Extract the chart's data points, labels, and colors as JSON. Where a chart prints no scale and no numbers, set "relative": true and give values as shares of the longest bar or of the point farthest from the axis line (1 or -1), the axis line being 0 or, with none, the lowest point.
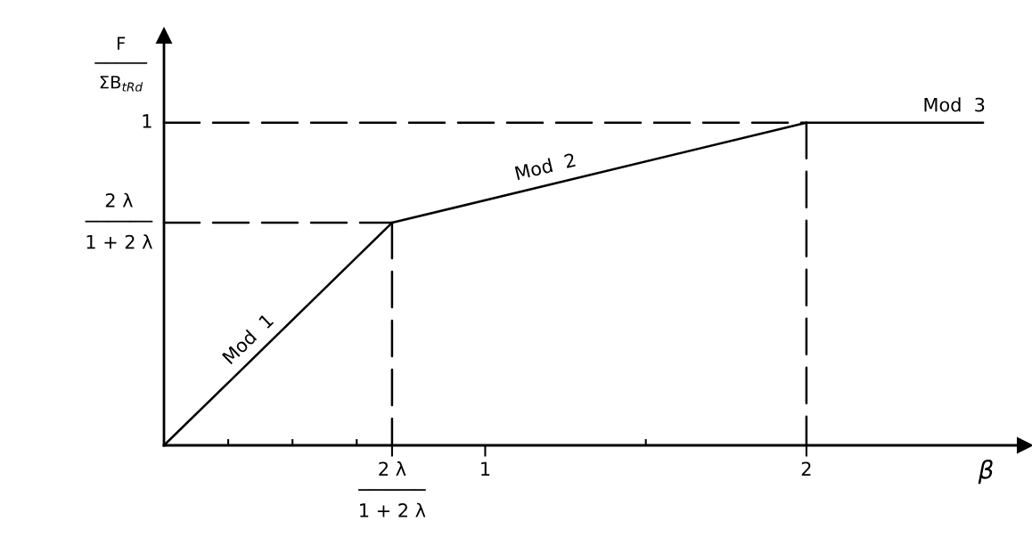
{
  "chart_data": {
    "type": "line",
    "relative": true,
    "xlabel": "β",
    "ylabel": "F\n─────\nΣB$_{tRd}$",
    "series": [
      {
        "x": [
          0,
          0.71,
          2,
          2.55
        ],
        "values": [
          0,
          0.69,
          1,
          1
        ],
        "color": "#000000",
        "line_style": "solid"
      },
      {
        "x": [
          0,
          0.71
        ],
        "values": [
          0.69,
          0.69
        ],
        "color": "#000000",
        "line_style": "dashed"
      },
      {
        "x": [
          0.71,
          0.71
        ],
        "values": [
          0.69,
          0
        ],
        "color": "#000000",
        "line_style": "dashed"
      },
      {
        "x": [
          0,
          2
        ],
        "values": [
          1,
          1
        ],
        "color": "#000000",
        "line_style": "dashed"
      },
      {
        "x": [
          2,
          2
        ],
        "values": [
          1,
          0
        ],
        "color": "#000000",
        "line_style": "dashed"
      }
    ],
    "xlim": [
      0,
      2.68
    ],
    "xticks": [
      {
        "value": 0.2,
        "label": null
      },
      {
        "value": 0.4,
        "label": null
      },
      {
        "value": 0.6,
        "label": null
      },
      {
        "value": 0.71,
        "label": "2 λ\n──────\n1 + 2 λ"
      },
      1,
      {
        "value": 1.5,
        "label": null
      },
      2
    ],
    "annotations": [
      {
        "text": "1",
        "x": 0,
        "y": 1
      },
      {
        "text": "2 λ\n──────\n1 + 2 λ",
        "x": 0,
        "y": 0.69
      },
      {
        "text": "Mod  1",
        "x": 0.3,
        "y": 0.29
      },
      {
        "text": "Mod  2",
        "x": 1.2,
        "y": 0.81
      },
      {
        "text": "Mod  3",
        "x": 2.46,
        "y": 1
      }
    ],
    "grid": false,
    "legend": false,
    "marker": "none"
  }
}
